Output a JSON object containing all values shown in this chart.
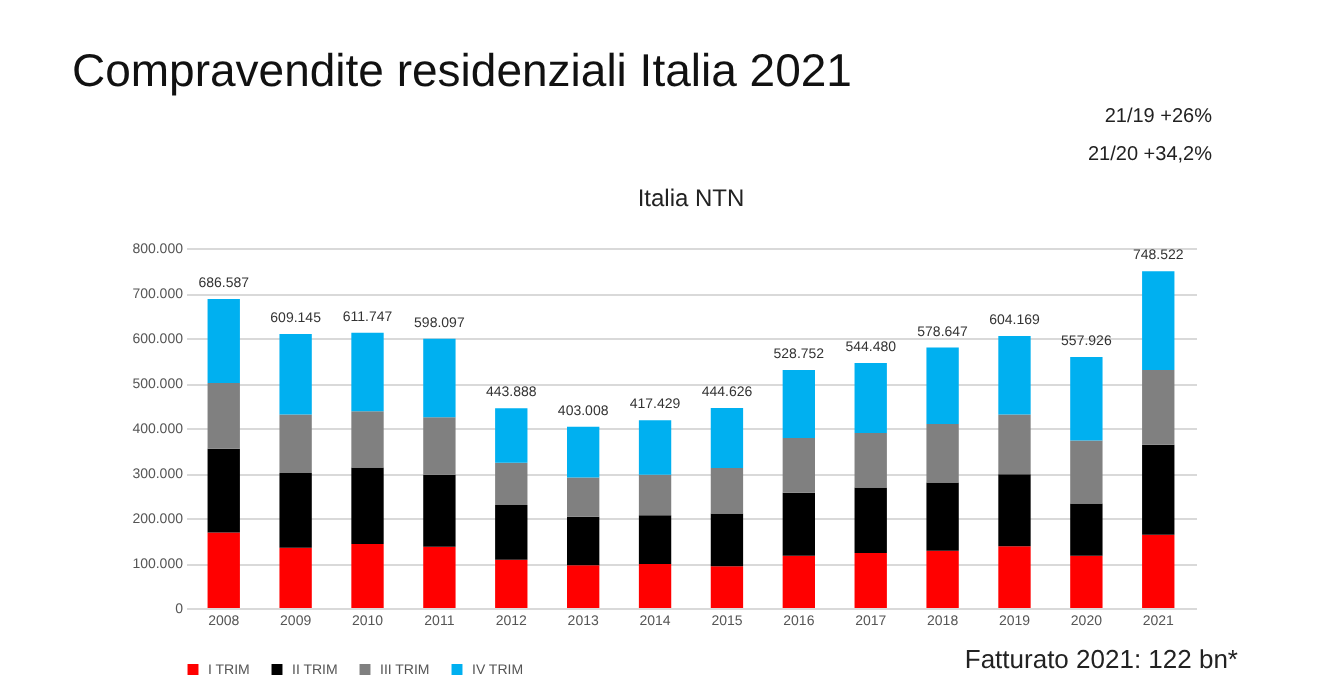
{
  "chart_data": {
    "type": "bar",
    "stacked": true,
    "title": "Italia NTN",
    "subtitle": "Compravendite residenziali Italia 2021",
    "annotations": [
      "21/19 +26%",
      "21/20 +34,2%",
      "Fatturato 2021: 122 bn*"
    ],
    "categories": [
      "2008",
      "2009",
      "2010",
      "2011",
      "2012",
      "2013",
      "2014",
      "2015",
      "2016",
      "2017",
      "2018",
      "2019",
      "2020",
      "2021"
    ],
    "series": [
      {
        "name": "I TRIM",
        "color": "#ff0000",
        "values": [
          168000,
          134000,
          142000,
          136000,
          107000,
          95000,
          98000,
          93000,
          116000,
          122000,
          127000,
          137000,
          116000,
          163000
        ]
      },
      {
        "name": "II TRIM",
        "color": "#000000",
        "values": [
          186000,
          166000,
          170000,
          160000,
          122000,
          108000,
          108000,
          117000,
          140000,
          146000,
          152000,
          160000,
          116000,
          200000
        ]
      },
      {
        "name": "III TRIM",
        "color": "#808080",
        "values": [
          146000,
          130000,
          125000,
          128000,
          94000,
          87000,
          90000,
          101000,
          122000,
          121000,
          130000,
          133000,
          140000,
          166000
        ]
      },
      {
        "name": "IV TRIM",
        "color": "#00b0f0",
        "values": [
          186587,
          179145,
          174747,
          174097,
          120888,
          113008,
          121429,
          133626,
          150752,
          155480,
          169647,
          174169,
          185926,
          219522
        ]
      }
    ],
    "totals": [
      "686.587",
      "609.145",
      "611.747",
      "598.097",
      "443.888",
      "403.008",
      "417.429",
      "444.626",
      "528.752",
      "544.480",
      "578.647",
      "604.169",
      "557.926",
      "748.522"
    ],
    "ylim": [
      0,
      800000
    ],
    "yticks": [
      {
        "value": 0,
        "label": "0"
      },
      {
        "value": 100000,
        "label": "100.000"
      },
      {
        "value": 200000,
        "label": "200.000"
      },
      {
        "value": 300000,
        "label": "300.000"
      },
      {
        "value": 400000,
        "label": "400.000"
      },
      {
        "value": 500000,
        "label": "500.000"
      },
      {
        "value": 600000,
        "label": "600.000"
      },
      {
        "value": 700000,
        "label": "700.000"
      },
      {
        "value": 800000,
        "label": "800.000"
      }
    ],
    "grid": "y",
    "legend": "bottom"
  }
}
